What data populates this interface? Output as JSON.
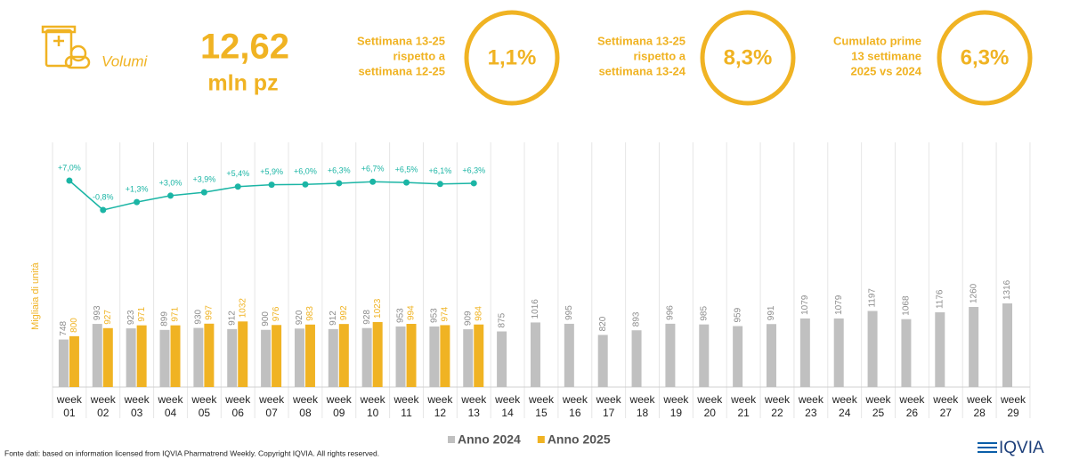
{
  "header": {
    "title": "Volumi",
    "total_value": "12,62",
    "total_unit": "mln pz",
    "kpis": [
      {
        "label": [
          "Settimana 13-25",
          "rispetto a",
          "settimana 12-25"
        ],
        "value": "1,1%"
      },
      {
        "label": [
          "Settimana 13-25",
          "rispetto a",
          "settimana 13-24"
        ],
        "value": "8,3%"
      },
      {
        "label": [
          "Cumulato prime",
          "13 settimane",
          "2025 vs 2024"
        ],
        "value": "6,3%"
      }
    ]
  },
  "chart_data": {
    "type": "bar",
    "y_label": "Migliaia di unità",
    "categories": [
      "week 01",
      "week 02",
      "week 03",
      "week 04",
      "week 05",
      "week 06",
      "week 07",
      "week 08",
      "week 09",
      "week 10",
      "week 11",
      "week 12",
      "week 13",
      "week 14",
      "week 15",
      "week 16",
      "week 17",
      "week 18",
      "week 19",
      "week 20",
      "week 21",
      "week 22",
      "week 23",
      "week 24",
      "week 25",
      "week 26",
      "week 27",
      "week 28",
      "week 29"
    ],
    "series": [
      {
        "name": "Anno 2024",
        "color": "#c0c0c0",
        "values": [
          748,
          993,
          923,
          899,
          930,
          912,
          900,
          920,
          912,
          928,
          953,
          953,
          909,
          875,
          1016,
          995,
          820,
          893,
          996,
          985,
          959,
          991,
          1079,
          1079,
          1197,
          1068,
          1176,
          1260,
          1316
        ]
      },
      {
        "name": "Anno 2025",
        "color": "#f0b323",
        "values": [
          800,
          927,
          971,
          971,
          997,
          1032,
          976,
          983,
          992,
          1023,
          994,
          974,
          984,
          null,
          null,
          null,
          null,
          null,
          null,
          null,
          null,
          null,
          null,
          null,
          null,
          null,
          null,
          null,
          null
        ]
      }
    ],
    "growth": {
      "color": "#1bb5a5",
      "values": [
        7.0,
        -0.8,
        1.3,
        3.0,
        3.9,
        5.4,
        5.9,
        6.0,
        6.3,
        6.7,
        6.5,
        6.1,
        6.3
      ],
      "value_labels": [
        "+7,0%",
        "-0,8%",
        "+1,3%",
        "+3,0%",
        "+3,9%",
        "+5,4%",
        "+5,9%",
        "+6,0%",
        "+6,3%",
        "+6,7%",
        "+6,5%",
        "+6,1%",
        "+6,3%"
      ]
    },
    "legend": "bottom"
  },
  "footer": {
    "source": "Fonte dati: based on information licensed from IQVIA Pharmatrend Weekly. Copyright IQVIA. All rights reserved.",
    "logo": "IQVIA"
  }
}
